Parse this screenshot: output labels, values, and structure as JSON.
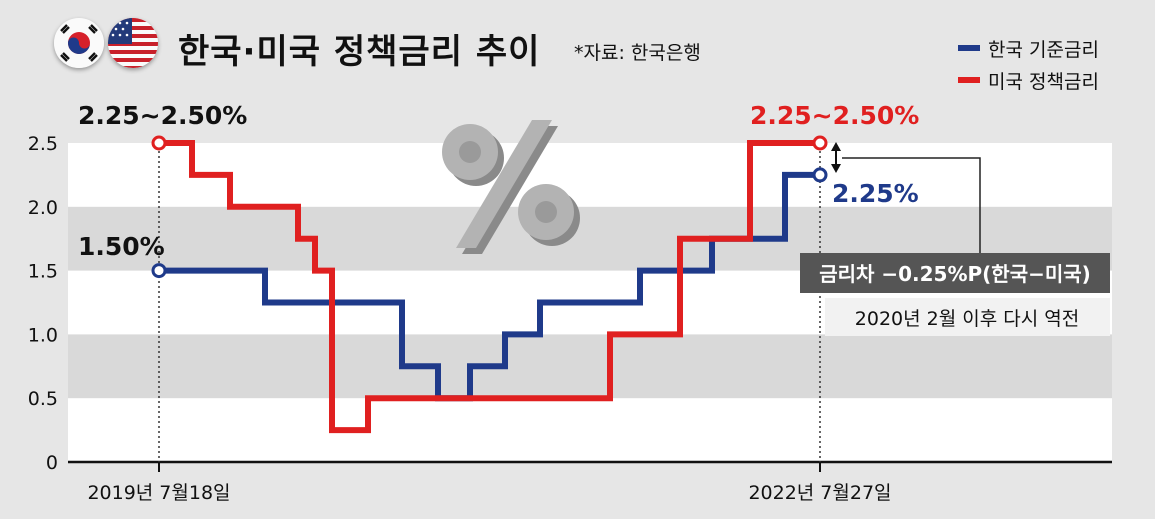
{
  "header": {
    "title": "한국·미국 정책금리 추이",
    "source": "*자료: 한국은행"
  },
  "legend": [
    {
      "label": "한국 기준금리",
      "color": "#1f3a8a"
    },
    {
      "label": "미국 정책금리",
      "color": "#e02020"
    }
  ],
  "icons": [
    "korea-flag-icon",
    "usa-flag-icon",
    "percent-icon"
  ],
  "annotations": {
    "us_start": "2.25~2.50%",
    "kr_start": "1.50%",
    "us_end": "2.25~2.50%",
    "kr_end": "2.25%",
    "gap_label": "금리차 −0.25%P(한국−미국)",
    "gap_note": "2020년 2월 이후 다시 역전"
  },
  "chart_data": {
    "type": "line",
    "step": true,
    "title": "한국·미국 정책금리 추이",
    "ylim": [
      0,
      2.5
    ],
    "yticks": [
      "0",
      "0.5",
      "1.0",
      "1.5",
      "2.0",
      "2.5"
    ],
    "xticks": [
      "2019년 7월18일",
      "2022년 7월27일"
    ],
    "grid": "horizontal bands",
    "legend_position": "top-right",
    "series": [
      {
        "name": "한국 기준금리",
        "color": "#1f3a8a",
        "values": [
          1.5,
          1.25,
          0.75,
          0.5,
          0.75,
          1.0,
          1.25,
          1.5,
          1.75,
          2.25
        ]
      },
      {
        "name": "미국 정책금리",
        "color": "#e02020",
        "values": [
          2.5,
          2.25,
          2.0,
          1.75,
          1.5,
          0.25,
          0.5,
          1.0,
          1.75,
          2.5
        ]
      }
    ]
  }
}
